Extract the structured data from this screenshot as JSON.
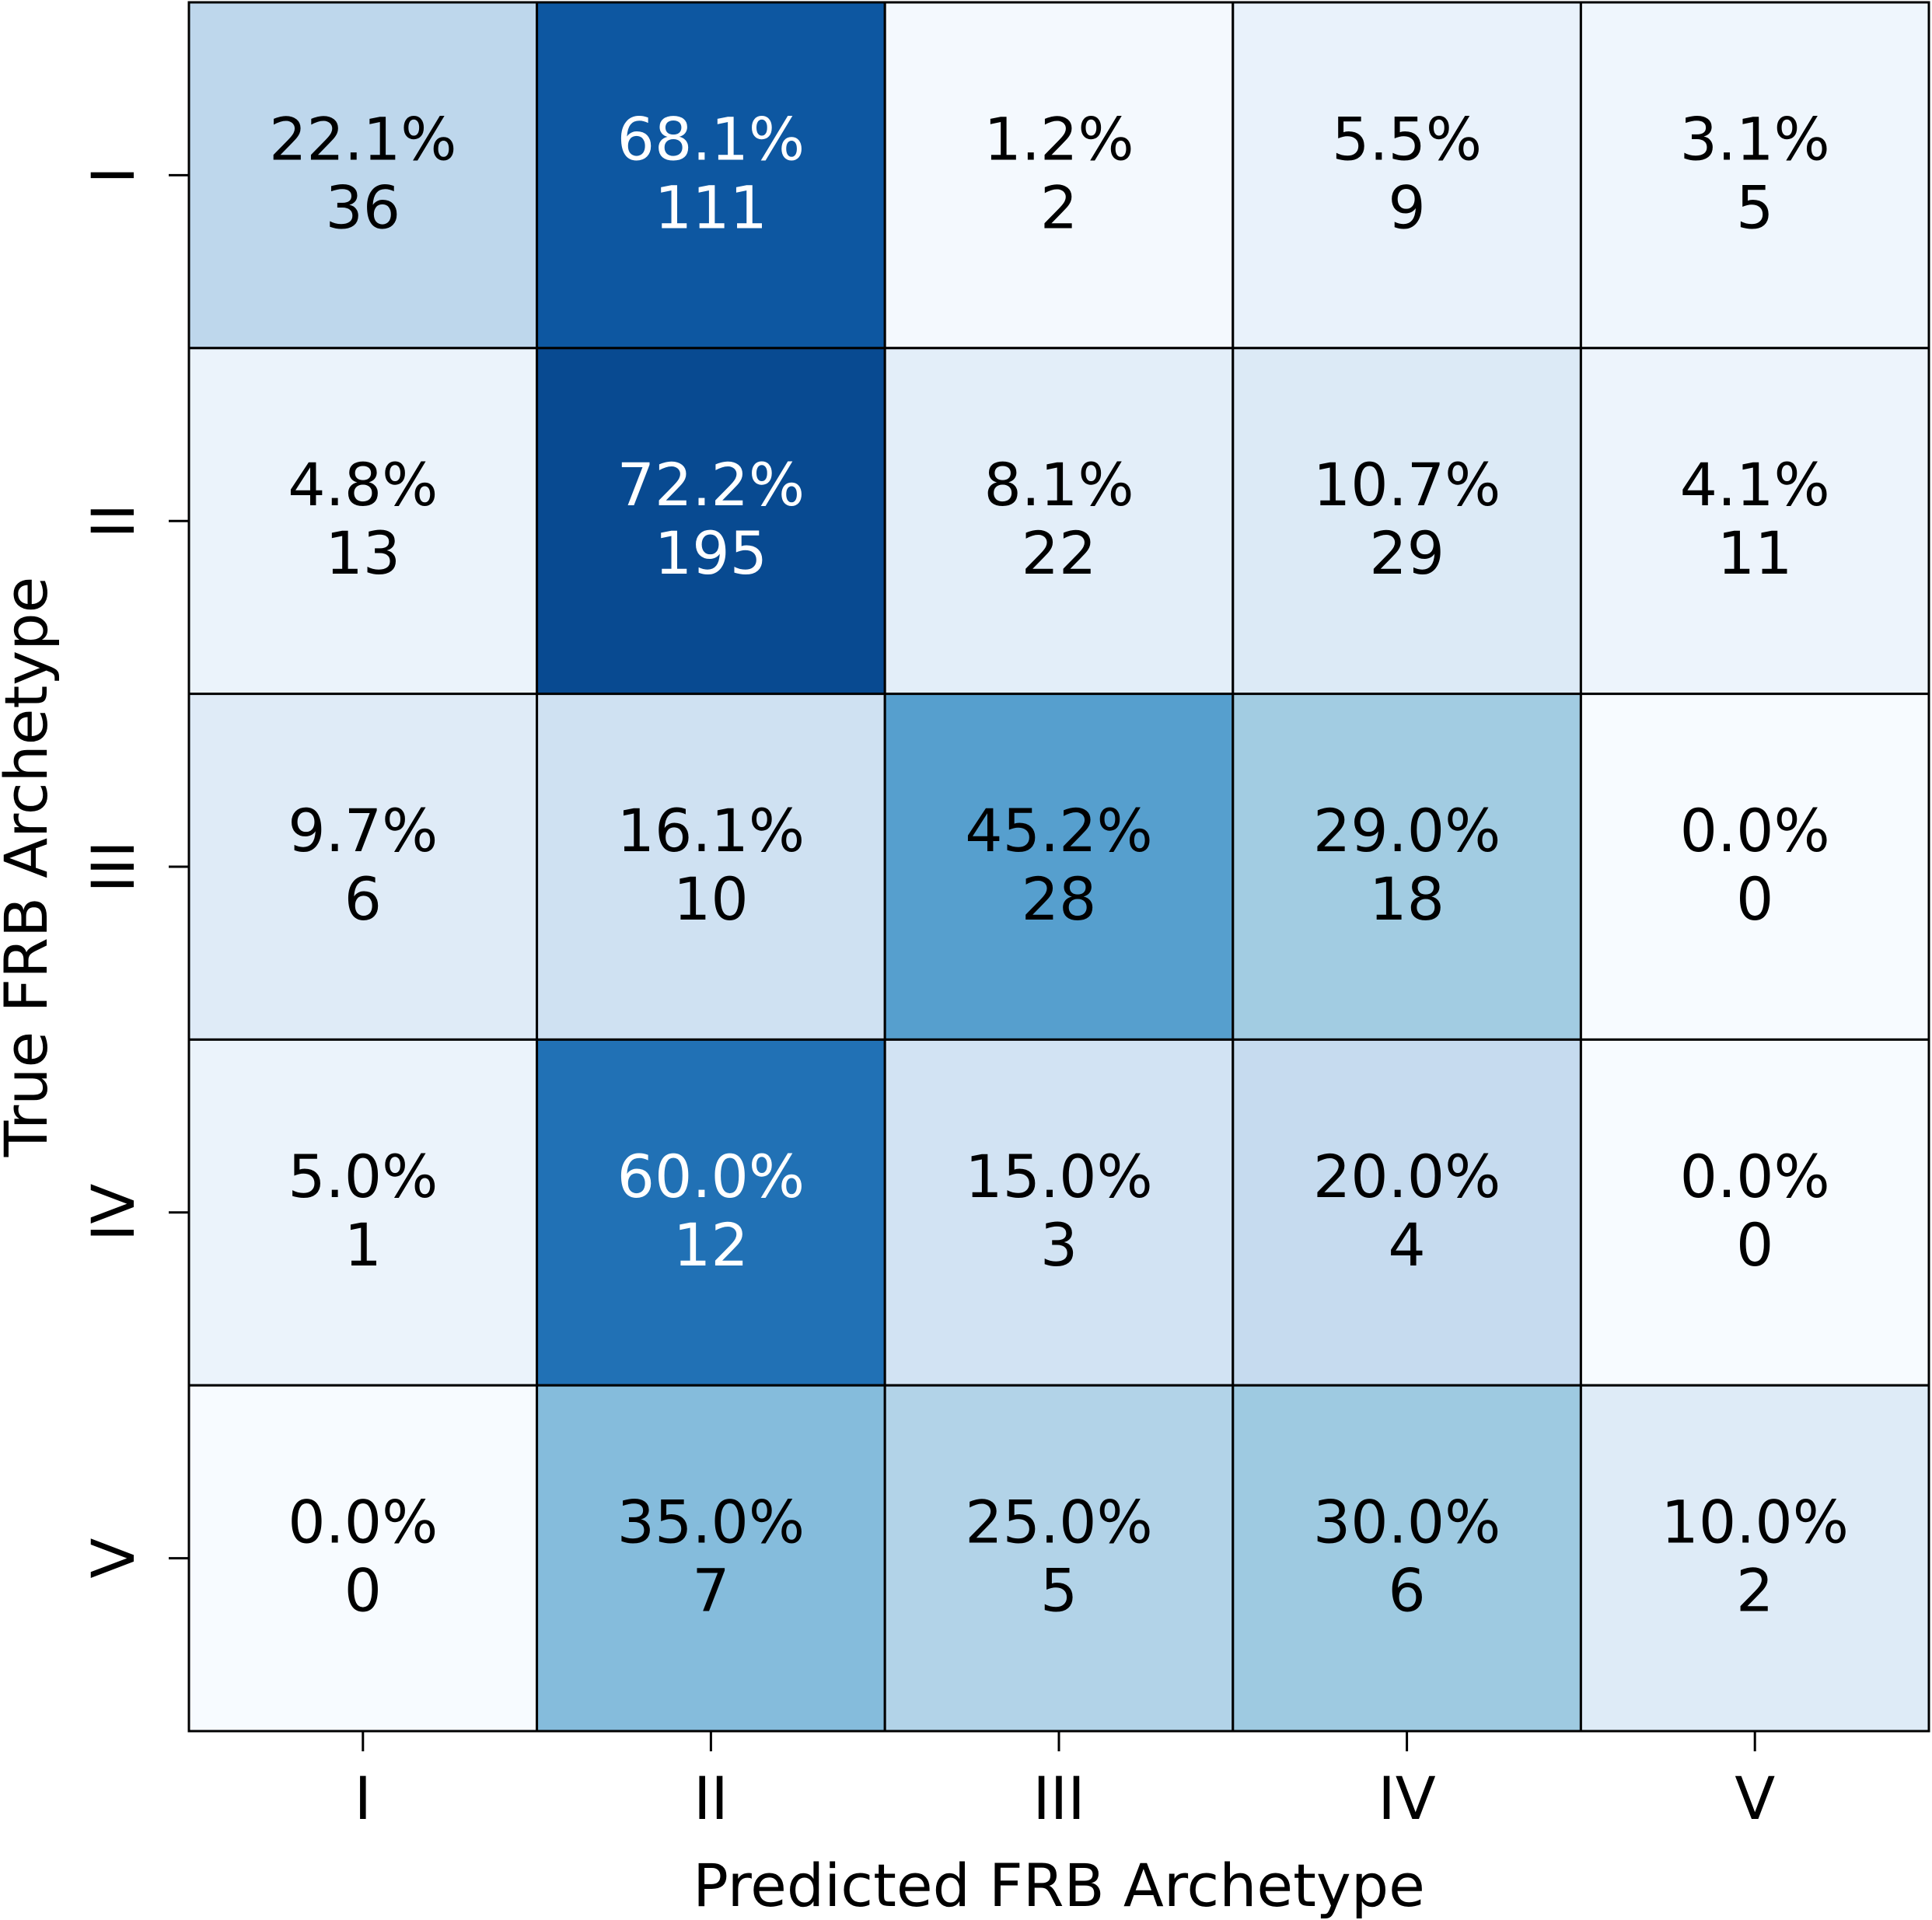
{
  "chart_data": {
    "type": "heatmap",
    "xlabel": "Predicted FRB Archetype",
    "ylabel": "True FRB Archetype",
    "x_categories": [
      "I",
      "II",
      "III",
      "IV",
      "V"
    ],
    "y_categories": [
      "I",
      "II",
      "III",
      "IV",
      "V"
    ],
    "percentages": [
      [
        "22.1%",
        "68.1%",
        "1.2%",
        "5.5%",
        "3.1%"
      ],
      [
        "4.8%",
        "72.2%",
        "8.1%",
        "10.7%",
        "4.1%"
      ],
      [
        "9.7%",
        "16.1%",
        "45.2%",
        "29.0%",
        "0.0%"
      ],
      [
        "5.0%",
        "60.0%",
        "15.0%",
        "20.0%",
        "0.0%"
      ],
      [
        "0.0%",
        "35.0%",
        "25.0%",
        "30.0%",
        "10.0%"
      ]
    ],
    "counts": [
      [
        "36",
        "111",
        "2",
        "9",
        "5"
      ],
      [
        "13",
        "195",
        "22",
        "29",
        "11"
      ],
      [
        "6",
        "10",
        "28",
        "18",
        "0"
      ],
      [
        "1",
        "12",
        "3",
        "4",
        "0"
      ],
      [
        "0",
        "7",
        "5",
        "6",
        "2"
      ]
    ],
    "colormap": "Blues",
    "color_range": [
      0,
      80
    ],
    "colorbar": false,
    "cell_border_color": "#000000"
  }
}
